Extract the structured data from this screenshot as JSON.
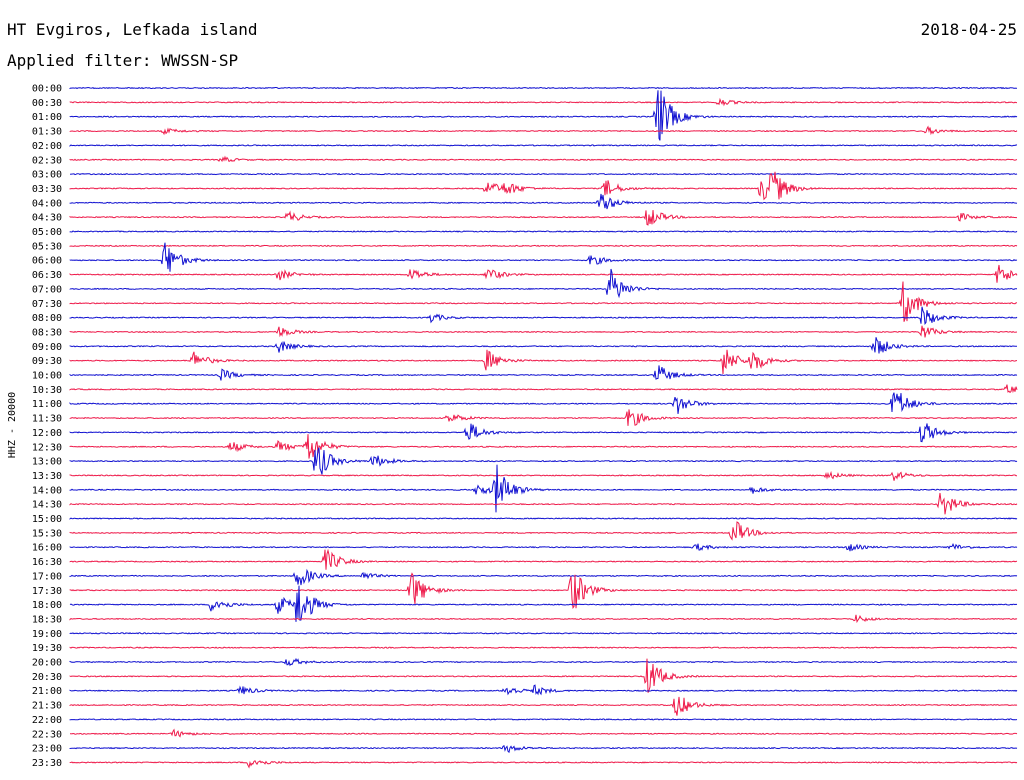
{
  "header": {
    "station": "HT Evgiros, Lefkada island",
    "date": "2018-04-25",
    "filter": "Applied filter: WWSSN-SP"
  },
  "chart_data": {
    "type": "line",
    "title": "HT Evgiros, Lefkada island",
    "ylabel": "HHZ - 20000",
    "colors": [
      "#1010d0",
      "#ee1a4a"
    ],
    "row_labels": [
      "00:00",
      "00:30",
      "01:00",
      "01:30",
      "02:00",
      "02:30",
      "03:00",
      "03:30",
      "04:00",
      "04:30",
      "05:00",
      "05:30",
      "06:00",
      "06:30",
      "07:00",
      "07:30",
      "08:00",
      "08:30",
      "09:00",
      "09:30",
      "10:00",
      "10:30",
      "11:00",
      "11:30",
      "12:00",
      "12:30",
      "13:00",
      "13:30",
      "14:00",
      "14:30",
      "15:00",
      "15:30",
      "16:00",
      "16:30",
      "17:00",
      "17:30",
      "18:00",
      "18:30",
      "19:00",
      "19:30",
      "20:00",
      "20:30",
      "21:00",
      "21:30",
      "22:00",
      "22:30",
      "23:00",
      "23:30"
    ],
    "events": [
      [
        2,
        0.62,
        38
      ],
      [
        1,
        0.685,
        4
      ],
      [
        3,
        0.1,
        3
      ],
      [
        3,
        0.905,
        4
      ],
      [
        5,
        0.16,
        3
      ],
      [
        7,
        0.44,
        9
      ],
      [
        7,
        0.46,
        7
      ],
      [
        7,
        0.565,
        10
      ],
      [
        7,
        0.73,
        14
      ],
      [
        7,
        0.74,
        18
      ],
      [
        8,
        0.56,
        12
      ],
      [
        9,
        0.23,
        6
      ],
      [
        9,
        0.61,
        12
      ],
      [
        9,
        0.94,
        4
      ],
      [
        12,
        0.1,
        22
      ],
      [
        12,
        0.55,
        6
      ],
      [
        13,
        0.22,
        6
      ],
      [
        13,
        0.36,
        7
      ],
      [
        13,
        0.44,
        8
      ],
      [
        13,
        0.98,
        12
      ],
      [
        14,
        0.57,
        22
      ],
      [
        15,
        0.88,
        24
      ],
      [
        16,
        0.38,
        5
      ],
      [
        16,
        0.9,
        12
      ],
      [
        17,
        0.22,
        6
      ],
      [
        17,
        0.9,
        8
      ],
      [
        18,
        0.22,
        7
      ],
      [
        18,
        0.85,
        12
      ],
      [
        19,
        0.13,
        10
      ],
      [
        19,
        0.44,
        12
      ],
      [
        19,
        0.69,
        16
      ],
      [
        19,
        0.72,
        12
      ],
      [
        20,
        0.16,
        6
      ],
      [
        20,
        0.62,
        12
      ],
      [
        21,
        0.99,
        5
      ],
      [
        22,
        0.64,
        12
      ],
      [
        22,
        0.87,
        20
      ],
      [
        23,
        0.4,
        6
      ],
      [
        23,
        0.59,
        12
      ],
      [
        24,
        0.42,
        12
      ],
      [
        24,
        0.9,
        14
      ],
      [
        25,
        0.17,
        6
      ],
      [
        25,
        0.22,
        6
      ],
      [
        25,
        0.25,
        20
      ],
      [
        26,
        0.26,
        22
      ],
      [
        26,
        0.32,
        8
      ],
      [
        27,
        0.8,
        4
      ],
      [
        27,
        0.87,
        5
      ],
      [
        28,
        0.43,
        7
      ],
      [
        28,
        0.45,
        26
      ],
      [
        28,
        0.72,
        4
      ],
      [
        29,
        0.92,
        16
      ],
      [
        31,
        0.7,
        16
      ],
      [
        32,
        0.66,
        4
      ],
      [
        32,
        0.82,
        5
      ],
      [
        32,
        0.93,
        4
      ],
      [
        33,
        0.27,
        14
      ],
      [
        34,
        0.24,
        14
      ],
      [
        34,
        0.31,
        4
      ],
      [
        35,
        0.36,
        22
      ],
      [
        35,
        0.53,
        26
      ],
      [
        36,
        0.15,
        9
      ],
      [
        36,
        0.22,
        10
      ],
      [
        36,
        0.24,
        28
      ],
      [
        37,
        0.83,
        4
      ],
      [
        40,
        0.23,
        5
      ],
      [
        41,
        0.61,
        22
      ],
      [
        42,
        0.18,
        5
      ],
      [
        42,
        0.46,
        6
      ],
      [
        42,
        0.49,
        5
      ],
      [
        43,
        0.64,
        14
      ],
      [
        45,
        0.11,
        4
      ],
      [
        46,
        0.46,
        5
      ],
      [
        47,
        0.19,
        6
      ]
    ]
  }
}
